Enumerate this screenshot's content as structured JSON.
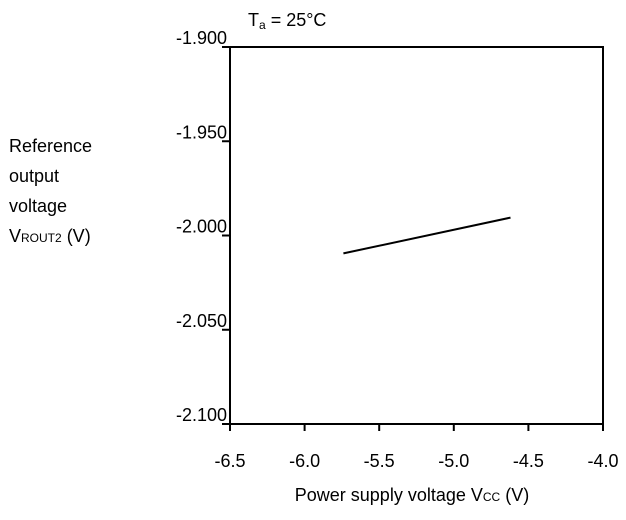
{
  "chart_data": {
    "type": "line",
    "annotation": {
      "main": "T",
      "sub": "a",
      "rest": " = 25°C"
    },
    "ylabel_lines": [
      "Reference",
      "output",
      "voltage"
    ],
    "ylabel_symbol": {
      "main": "V",
      "sub": "ROUT2",
      "rest": " (V)"
    },
    "xlabel": {
      "prefix": "Power supply voltage V",
      "sub": "CC",
      "rest": " (V)"
    },
    "x_ticks": [
      "-6.5",
      "-6.0",
      "-5.5",
      "-5.0",
      "-4.5",
      "-4.0"
    ],
    "y_ticks": [
      "-1.900",
      "-1.950",
      "-2.000",
      "-2.050",
      "-2.100"
    ],
    "xlim": [
      -6.5,
      -4.0
    ],
    "ylim": [
      -2.1,
      -1.9
    ],
    "grid": false,
    "series": [
      {
        "x": [
          -5.74,
          -4.62
        ],
        "y": [
          -2.0095,
          -1.9905
        ]
      }
    ]
  }
}
